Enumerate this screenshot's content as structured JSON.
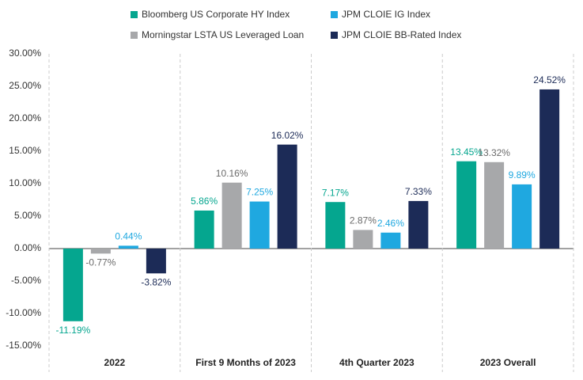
{
  "chart_data": {
    "type": "bar",
    "categories": [
      "2022",
      "First 9 Months of 2023",
      "4th Quarter 2023",
      "2023 Overall"
    ],
    "series": [
      {
        "name": "Bloomberg US Corporate HY Index",
        "color": "#05a68f",
        "label_color": "#05a68f",
        "values": [
          -11.19,
          5.86,
          7.17,
          13.45
        ],
        "value_labels": [
          "-11.19%",
          "5.86%",
          "7.17%",
          "13.45%"
        ]
      },
      {
        "name": "Morningstar LSTA US Leveraged Loan",
        "color": "#a7a8aa",
        "label_color": "#6b6b6b",
        "values": [
          -0.77,
          10.16,
          2.87,
          13.32
        ],
        "value_labels": [
          "-0.77%",
          "10.16%",
          "2.87%",
          "13.32%"
        ]
      },
      {
        "name": "JPM CLOIE IG Index",
        "color": "#1fa8e0",
        "label_color": "#1fa8e0",
        "values": [
          0.44,
          7.25,
          2.46,
          9.89
        ],
        "value_labels": [
          "0.44%",
          "7.25%",
          "2.46%",
          "9.89%"
        ]
      },
      {
        "name": "JPM CLOIE BB-Rated Index",
        "color": "#1c2b57",
        "label_color": "#1c2b57",
        "values": [
          -3.82,
          16.02,
          7.33,
          24.52
        ],
        "value_labels": [
          "-3.82%",
          "16.02%",
          "7.33%",
          "24.52%"
        ]
      }
    ],
    "ylim": [
      -15,
      30
    ],
    "yticks": [
      {
        "value": -15,
        "label": "-15.00%"
      },
      {
        "value": -10,
        "label": "-10.00%"
      },
      {
        "value": -5,
        "label": "-5.00%"
      },
      {
        "value": 0,
        "label": "0.00%"
      },
      {
        "value": 5,
        "label": "5.00%"
      },
      {
        "value": 10,
        "label": "10.00%"
      },
      {
        "value": 15,
        "label": "15.00%"
      },
      {
        "value": 20,
        "label": "20.00%"
      },
      {
        "value": 25,
        "label": "25.00%"
      },
      {
        "value": 30,
        "label": "30.00%"
      }
    ],
    "grid": false
  }
}
